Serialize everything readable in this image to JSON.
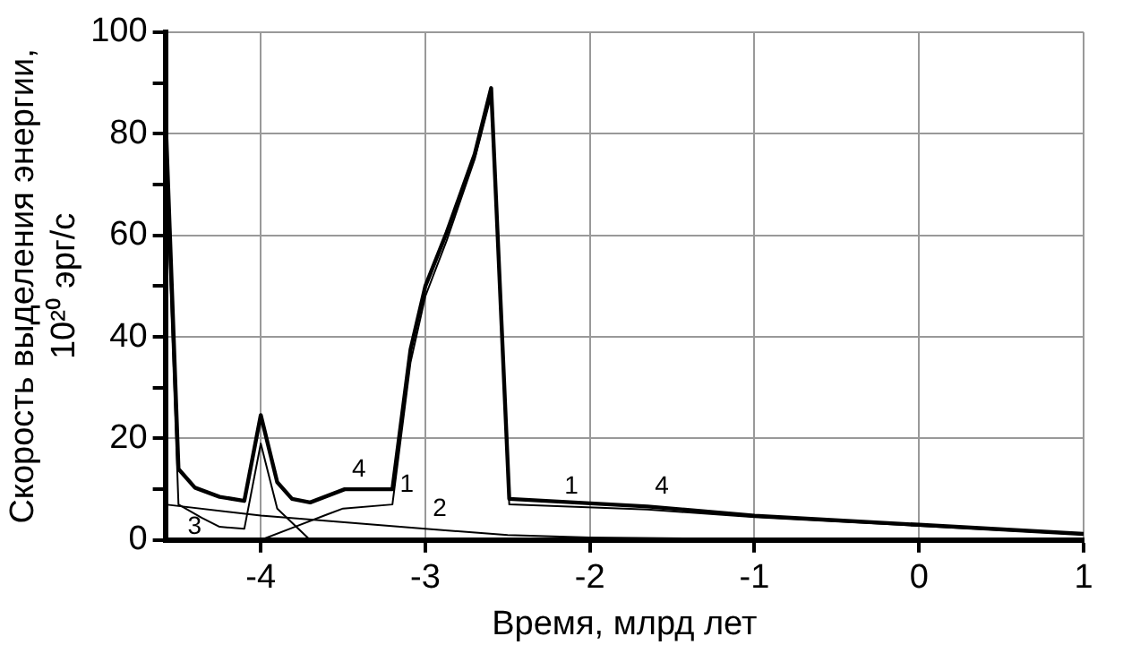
{
  "chart_data": {
    "type": "line",
    "xlabel": "Время, млрд лет",
    "ylabel": "Скорость выделения энергии,\n10²⁰ эрг/с",
    "xlim": [
      -4.58,
      1
    ],
    "xticks": [
      -4,
      -3,
      -2,
      -1,
      0,
      1
    ],
    "ylim": [
      0,
      100
    ],
    "yticks": [
      0,
      {
        "value": 10,
        "label": null
      },
      20,
      {
        "value": 30,
        "label": null
      },
      40,
      {
        "value": 50,
        "label": null
      },
      60,
      {
        "value": 70,
        "label": null
      },
      80,
      {
        "value": 90,
        "label": null
      },
      100
    ],
    "grid": true,
    "legend": false,
    "marker": "none",
    "line_style": "solid",
    "series": [
      {
        "color": "#000000",
        "x": [
          -4.0,
          -3.8,
          -3.6,
          -3.5,
          -3.2,
          -3.09,
          -3.0,
          -2.87,
          -2.7,
          -2.6,
          -2.49,
          -1.65,
          -1,
          0,
          1
        ],
        "values": [
          0,
          2.5,
          5,
          6.2,
          7,
          35,
          48,
          59,
          75,
          87.5,
          7,
          6,
          4.5,
          2.8,
          1.1
        ]
      },
      {
        "color": "#000000",
        "x": [
          -4.58,
          -4,
          -3,
          -2.5,
          -2,
          -1,
          0,
          1
        ],
        "values": [
          7,
          4.8,
          2.2,
          1,
          0.5,
          0.2,
          0.1,
          0
        ]
      },
      {
        "color": "#000000",
        "x": [
          -4.58,
          -4.5,
          -4.36,
          -4.25,
          -4.1,
          -4,
          -3.9,
          -3.7
        ],
        "values": [
          78,
          7,
          4.4,
          2.6,
          2.2,
          19,
          6.2,
          0
        ]
      },
      {
        "color": "#000000",
        "x": [
          -4.58,
          -4.5,
          -4.4,
          -4.25,
          -4.1,
          -4,
          -3.9,
          -3.81,
          -3.7,
          -3.49,
          -3.2,
          -3.09,
          -3,
          -2.87,
          -2.7,
          -2.6,
          -2.49,
          -1.65,
          -1,
          0,
          1
        ],
        "values": [
          85,
          14,
          10.3,
          8.5,
          7.7,
          24.6,
          11.4,
          8.1,
          7.4,
          10,
          10,
          37.5,
          50,
          60.6,
          76,
          89,
          8.1,
          6.6,
          4.8,
          3,
          1.2
        ]
      }
    ],
    "annotations": [
      {
        "text": "4",
        "x": -3.49,
        "y": 10
      },
      {
        "text": "1",
        "x": -3.2,
        "y": 7
      },
      {
        "text": "2",
        "x": -3,
        "y": 2.2
      },
      {
        "text": "1",
        "x": -2.2,
        "y": 6.7
      },
      {
        "text": "3",
        "x": -4.25,
        "y": 2.6
      },
      {
        "text": "4",
        "x": -1.65,
        "y": 6.6
      }
    ]
  }
}
